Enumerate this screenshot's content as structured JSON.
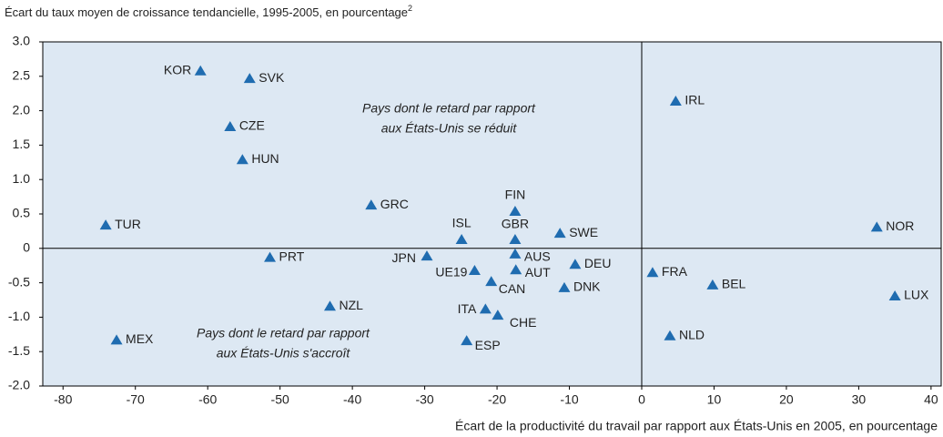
{
  "chart_data": {
    "type": "scatter",
    "title": {
      "text": "Écart du taux moyen de croissance tendancielle, 1995-2005, en pourcentage",
      "superscript": "2"
    },
    "x_label": "Écart de la productivité du travail par rapport aux États-Unis en 2005, en pourcentage",
    "annotations": [
      {
        "lines": [
          "Pays dont le retard par rapport",
          "aux États-Unis se réduit"
        ]
      },
      {
        "lines": [
          "Pays dont le retard par rapport",
          "aux États-Unis s'accroît"
        ]
      }
    ],
    "series": [
      {
        "name": "Pays",
        "color": "#1f6cb0",
        "labels": [
          "KOR",
          "SVK",
          "CZE",
          "HUN",
          "GRC",
          "TUR",
          "PRT",
          "NZL",
          "MEX",
          "JPN",
          "ISL",
          "UE19",
          "CAN",
          "ITA",
          "CHE",
          "ESP",
          "FIN",
          "GBR",
          "AUS",
          "AUT",
          "SWE",
          "DEU",
          "DNK",
          "IRL",
          "FRA",
          "BEL",
          "NLD",
          "NOR",
          "LUX"
        ],
        "x": [
          -61.0,
          -54.2,
          -56.9,
          -55.2,
          -37.4,
          -74.1,
          -51.4,
          -43.1,
          -72.6,
          -29.7,
          -24.9,
          -23.1,
          -20.8,
          -21.6,
          -19.9,
          -24.2,
          -17.5,
          -17.5,
          -17.5,
          -17.4,
          -11.3,
          -9.2,
          -10.7,
          4.7,
          1.5,
          9.8,
          3.9,
          32.5,
          35.0
        ],
        "values": [
          2.58,
          2.47,
          1.77,
          1.29,
          0.63,
          0.34,
          -0.13,
          -0.84,
          -1.33,
          -0.11,
          0.13,
          -0.32,
          -0.48,
          -0.88,
          -0.97,
          -1.34,
          0.54,
          0.13,
          -0.08,
          -0.31,
          0.22,
          -0.23,
          -0.57,
          2.14,
          -0.35,
          -0.53,
          -1.27,
          0.31,
          -0.69
        ]
      }
    ],
    "xlim": [
      -82.8,
      41.4
    ],
    "xticks": [
      -80,
      -70,
      -60,
      -50,
      -40,
      -30,
      -20,
      -10,
      0,
      10,
      20,
      30,
      40
    ],
    "ylim": [
      -2,
      3
    ],
    "yticks": [
      {
        "value": 3,
        "label": "3.0"
      },
      2.5,
      {
        "value": 2,
        "label": "2.0"
      },
      1.5,
      {
        "value": 1,
        "label": "1.0"
      },
      0.5,
      0,
      -0.5,
      {
        "value": -1,
        "label": "-1.0"
      },
      -1.5,
      {
        "value": -2,
        "label": "-2.0"
      }
    ],
    "background": "#dde8f3"
  }
}
